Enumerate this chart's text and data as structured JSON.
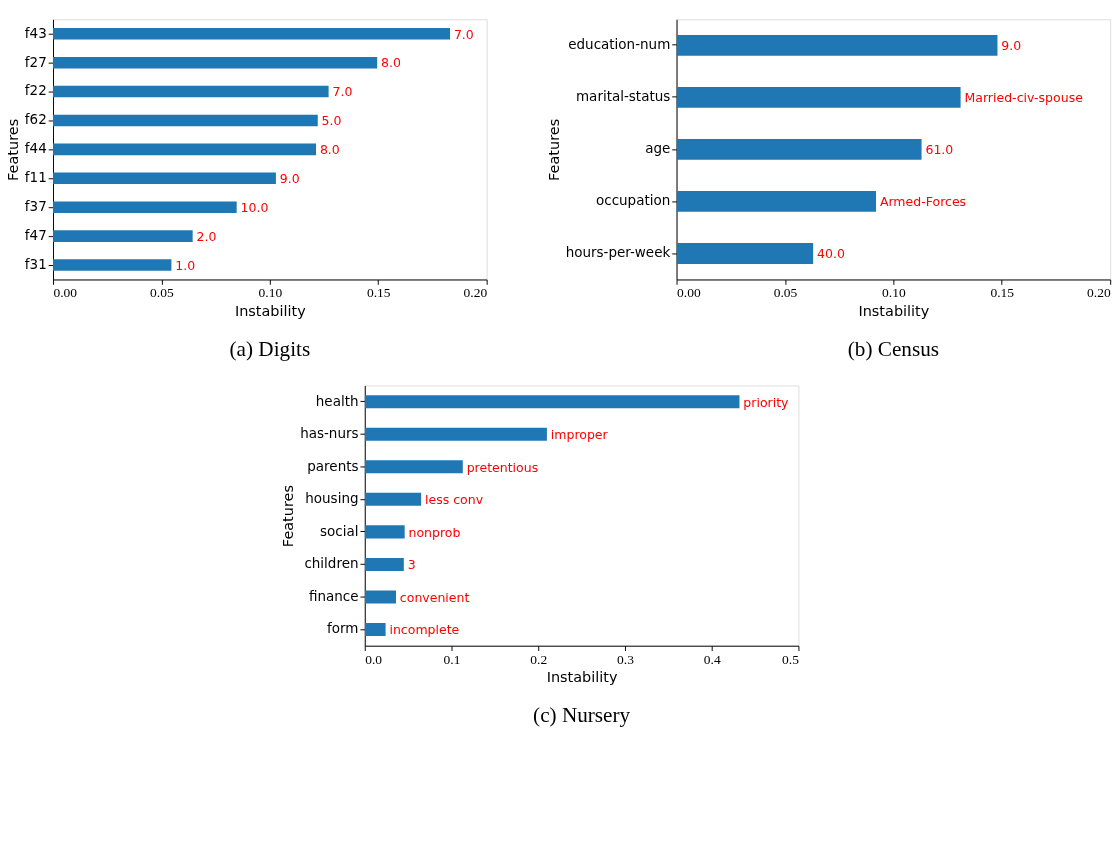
{
  "chart_data": [
    {
      "type": "bar",
      "orientation": "horizontal",
      "title": "(a) Digits",
      "xlabel": "Instability",
      "ylabel": "Features",
      "color": "#1f77b4",
      "categories": [
        "f43",
        "f27",
        "f22",
        "f62",
        "f44",
        "f11",
        "f37",
        "f47",
        "f31"
      ],
      "values": [
        0.1831,
        0.1495,
        0.1271,
        0.1221,
        0.1213,
        0.1028,
        0.0847,
        0.0644,
        0.0546
      ],
      "annotations": [
        {
          "text": "7.0",
          "x": 0.1831,
          "y": "f43"
        },
        {
          "text": "8.0",
          "x": 0.1495,
          "y": "f27"
        },
        {
          "text": "7.0",
          "x": 0.1271,
          "y": "f22"
        },
        {
          "text": "5.0",
          "x": 0.1221,
          "y": "f62"
        },
        {
          "text": "8.0",
          "x": 0.1213,
          "y": "f44"
        },
        {
          "text": "9.0",
          "x": 0.1028,
          "y": "f11"
        },
        {
          "text": "10.0",
          "x": 0.0847,
          "y": "f37"
        },
        {
          "text": "2.0",
          "x": 0.0644,
          "y": "f47"
        },
        {
          "text": "1.0",
          "x": 0.0546,
          "y": "f31"
        }
      ],
      "xlim": [
        0,
        0.2
      ],
      "xticks": [
        {
          "value": 0,
          "label": "0.00"
        },
        0.05,
        {
          "value": 0.1,
          "label": "0.10"
        },
        0.15,
        {
          "value": 0.2,
          "label": "0.20"
        }
      ],
      "grid": false
    },
    {
      "type": "bar",
      "orientation": "horizontal",
      "title": "(b) Census",
      "xlabel": "Instability",
      "ylabel": "Features",
      "color": "#1f77b4",
      "categories": [
        "education-num",
        "marital-status",
        "age",
        "occupation",
        "hours-per-week"
      ],
      "values": [
        0.148,
        0.131,
        0.113,
        0.092,
        0.063
      ],
      "annotations": [
        {
          "text": "9.0",
          "x": 0.148,
          "y": "education-num"
        },
        {
          "text": "Married-civ-spouse",
          "x": 0.131,
          "y": "marital-status"
        },
        {
          "text": "61.0",
          "x": 0.113,
          "y": "age"
        },
        {
          "text": "Armed-Forces",
          "x": 0.092,
          "y": "occupation"
        },
        {
          "text": "40.0",
          "x": 0.063,
          "y": "hours-per-week"
        }
      ],
      "xlim": [
        0,
        0.2
      ],
      "xticks": [
        {
          "value": 0,
          "label": "0.00"
        },
        0.05,
        {
          "value": 0.1,
          "label": "0.10"
        },
        0.15,
        {
          "value": 0.2,
          "label": "0.20"
        }
      ],
      "grid": false
    },
    {
      "type": "bar",
      "orientation": "horizontal",
      "title": "(c) Nursery",
      "xlabel": "Instability",
      "ylabel": "Features",
      "color": "#1f77b4",
      "categories": [
        "health",
        "has-nurs",
        "parents",
        "housing",
        "social",
        "children",
        "finance",
        "form"
      ],
      "values": [
        0.432,
        0.21,
        0.113,
        0.065,
        0.046,
        0.045,
        0.036,
        0.024
      ],
      "annotations": [
        {
          "text": "priority",
          "x": 0.432,
          "y": "health"
        },
        {
          "text": "improper",
          "x": 0.21,
          "y": "has-nurs"
        },
        {
          "text": "pretentious",
          "x": 0.113,
          "y": "parents"
        },
        {
          "text": "less conv",
          "x": 0.065,
          "y": "housing"
        },
        {
          "text": "nonprob",
          "x": 0.046,
          "y": "social"
        },
        {
          "text": "3",
          "x": 0.045,
          "y": "children"
        },
        {
          "text": "convenient",
          "x": 0.036,
          "y": "finance"
        },
        {
          "text": "incomplete",
          "x": 0.024,
          "y": "form"
        }
      ],
      "xlim": [
        0,
        0.5
      ],
      "xticks": [
        {
          "value": 0,
          "label": "0.0"
        },
        0.1,
        0.2,
        0.3,
        0.4,
        0.5
      ],
      "grid": false
    }
  ]
}
